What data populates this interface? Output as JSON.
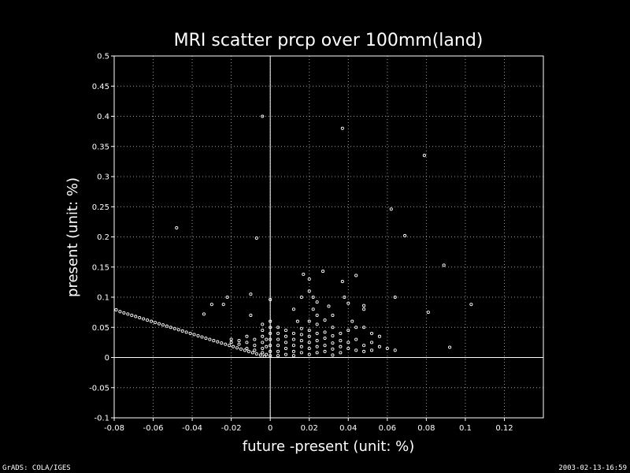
{
  "chart_data": {
    "type": "scatter",
    "title": "MRI scatter prcp over 100mm(land)",
    "xlabel": "future -present (unit: %)",
    "ylabel": "present (unit: %)",
    "xlim": [
      -0.08,
      0.14
    ],
    "ylim": [
      -0.1,
      0.5
    ],
    "xticks": [
      "-0.08",
      "-0.06",
      "-0.04",
      "-0.02",
      "0",
      "0.02",
      "0.04",
      "0.06",
      "0.08",
      "0.1",
      "0.12"
    ],
    "xtick_values": [
      -0.08,
      -0.06,
      -0.04,
      -0.02,
      0,
      0.02,
      0.04,
      0.06,
      0.08,
      0.1,
      0.12
    ],
    "yticks": [
      "-0.1",
      "-0.05",
      "0",
      "0.05",
      "0.1",
      "0.15",
      "0.2",
      "0.25",
      "0.3",
      "0.35",
      "0.4",
      "0.45",
      "0.5"
    ],
    "ytick_values": [
      -0.1,
      -0.05,
      0,
      0.05,
      0.1,
      0.15,
      0.2,
      0.25,
      0.3,
      0.35,
      0.4,
      0.45,
      0.5
    ],
    "grid": true,
    "zero_lines": true,
    "points": [
      [
        -0.079,
        0.079
      ],
      [
        -0.077,
        0.076
      ],
      [
        -0.075,
        0.074
      ],
      [
        -0.073,
        0.072
      ],
      [
        -0.071,
        0.07
      ],
      [
        -0.069,
        0.068
      ],
      [
        -0.067,
        0.066
      ],
      [
        -0.065,
        0.064
      ],
      [
        -0.063,
        0.062
      ],
      [
        -0.061,
        0.06
      ],
      [
        -0.059,
        0.058
      ],
      [
        -0.057,
        0.056
      ],
      [
        -0.055,
        0.054
      ],
      [
        -0.053,
        0.052
      ],
      [
        -0.051,
        0.05
      ],
      [
        -0.049,
        0.048
      ],
      [
        -0.047,
        0.046
      ],
      [
        -0.045,
        0.044
      ],
      [
        -0.043,
        0.042
      ],
      [
        -0.041,
        0.04
      ],
      [
        -0.039,
        0.038
      ],
      [
        -0.037,
        0.036
      ],
      [
        -0.035,
        0.034
      ],
      [
        -0.033,
        0.032
      ],
      [
        -0.031,
        0.03
      ],
      [
        -0.029,
        0.028
      ],
      [
        -0.027,
        0.026
      ],
      [
        -0.025,
        0.024
      ],
      [
        -0.023,
        0.022
      ],
      [
        -0.021,
        0.02
      ],
      [
        -0.019,
        0.018
      ],
      [
        -0.017,
        0.016
      ],
      [
        -0.015,
        0.014
      ],
      [
        -0.013,
        0.012
      ],
      [
        -0.011,
        0.01
      ],
      [
        -0.009,
        0.008
      ],
      [
        -0.007,
        0.006
      ],
      [
        -0.005,
        0.004
      ],
      [
        -0.003,
        0.002
      ],
      [
        -0.02,
        0.03
      ],
      [
        -0.02,
        0.025
      ],
      [
        -0.016,
        0.028
      ],
      [
        -0.016,
        0.022
      ],
      [
        -0.012,
        0.035
      ],
      [
        -0.012,
        0.025
      ],
      [
        -0.012,
        0.015
      ],
      [
        -0.008,
        0.03
      ],
      [
        -0.008,
        0.02
      ],
      [
        -0.008,
        0.012
      ],
      [
        -0.004,
        0.055
      ],
      [
        -0.004,
        0.045
      ],
      [
        -0.004,
        0.035
      ],
      [
        -0.004,
        0.025
      ],
      [
        -0.004,
        0.015
      ],
      [
        -0.004,
        0.008
      ],
      [
        -0.002,
        0.03
      ],
      [
        -0.002,
        0.018
      ],
      [
        -0.002,
        0.005
      ],
      [
        0.0,
        0.06
      ],
      [
        0.0,
        0.05
      ],
      [
        0.0,
        0.04
      ],
      [
        0.0,
        0.03
      ],
      [
        0.0,
        0.02
      ],
      [
        0.0,
        0.01
      ],
      [
        0.0,
        0.003
      ],
      [
        0.004,
        0.05
      ],
      [
        0.004,
        0.04
      ],
      [
        0.004,
        0.03
      ],
      [
        0.004,
        0.02
      ],
      [
        0.004,
        0.01
      ],
      [
        0.004,
        0.003
      ],
      [
        0.008,
        0.045
      ],
      [
        0.008,
        0.035
      ],
      [
        0.008,
        0.025
      ],
      [
        0.008,
        0.015
      ],
      [
        0.008,
        0.005
      ],
      [
        0.012,
        0.04
      ],
      [
        0.012,
        0.03
      ],
      [
        0.012,
        0.02
      ],
      [
        0.012,
        0.01
      ],
      [
        0.012,
        0.003
      ],
      [
        0.016,
        0.048
      ],
      [
        0.016,
        0.038
      ],
      [
        0.016,
        0.028
      ],
      [
        0.016,
        0.018
      ],
      [
        0.016,
        0.008
      ],
      [
        0.02,
        0.06
      ],
      [
        0.02,
        0.045
      ],
      [
        0.02,
        0.035
      ],
      [
        0.02,
        0.025
      ],
      [
        0.02,
        0.015
      ],
      [
        0.02,
        0.005
      ],
      [
        0.024,
        0.07
      ],
      [
        0.024,
        0.055
      ],
      [
        0.024,
        0.04
      ],
      [
        0.024,
        0.028
      ],
      [
        0.024,
        0.018
      ],
      [
        0.024,
        0.008
      ],
      [
        0.028,
        0.062
      ],
      [
        0.028,
        0.042
      ],
      [
        0.028,
        0.032
      ],
      [
        0.028,
        0.02
      ],
      [
        0.028,
        0.01
      ],
      [
        0.032,
        0.05
      ],
      [
        0.032,
        0.036
      ],
      [
        0.032,
        0.024
      ],
      [
        0.032,
        0.014
      ],
      [
        0.032,
        0.004
      ],
      [
        0.036,
        0.04
      ],
      [
        0.036,
        0.028
      ],
      [
        0.036,
        0.018
      ],
      [
        0.036,
        0.008
      ],
      [
        0.04,
        0.045
      ],
      [
        0.04,
        0.025
      ],
      [
        0.04,
        0.015
      ],
      [
        0.044,
        0.05
      ],
      [
        0.044,
        0.03
      ],
      [
        0.044,
        0.012
      ],
      [
        0.048,
        0.05
      ],
      [
        0.048,
        0.02
      ],
      [
        0.048,
        0.01
      ],
      [
        0.052,
        0.04
      ],
      [
        0.052,
        0.025
      ],
      [
        0.052,
        0.012
      ],
      [
        0.056,
        0.035
      ],
      [
        0.056,
        0.018
      ],
      [
        0.06,
        0.015
      ],
      [
        0.064,
        0.012
      ],
      [
        -0.048,
        0.215
      ],
      [
        -0.034,
        0.072
      ],
      [
        -0.03,
        0.088
      ],
      [
        -0.024,
        0.088
      ],
      [
        -0.022,
        0.1
      ],
      [
        -0.01,
        0.105
      ],
      [
        -0.01,
        0.07
      ],
      [
        -0.007,
        0.198
      ],
      [
        -0.004,
        0.4
      ],
      [
        0.0,
        0.096
      ],
      [
        0.012,
        0.08
      ],
      [
        0.014,
        0.06
      ],
      [
        0.016,
        0.1
      ],
      [
        0.017,
        0.138
      ],
      [
        0.02,
        0.13
      ],
      [
        0.02,
        0.11
      ],
      [
        0.022,
        0.1
      ],
      [
        0.022,
        0.08
      ],
      [
        0.024,
        0.092
      ],
      [
        0.027,
        0.143
      ],
      [
        0.03,
        0.085
      ],
      [
        0.032,
        0.07
      ],
      [
        0.037,
        0.38
      ],
      [
        0.037,
        0.126
      ],
      [
        0.038,
        0.1
      ],
      [
        0.04,
        0.09
      ],
      [
        0.042,
        0.06
      ],
      [
        0.044,
        0.136
      ],
      [
        0.048,
        0.086
      ],
      [
        0.048,
        0.08
      ],
      [
        0.062,
        0.246
      ],
      [
        0.064,
        0.1
      ],
      [
        0.069,
        0.202
      ],
      [
        0.079,
        0.335
      ],
      [
        0.081,
        0.075
      ],
      [
        0.089,
        0.153
      ],
      [
        0.092,
        0.017
      ],
      [
        0.103,
        0.088
      ]
    ]
  },
  "footer": {
    "left": "GrADS: COLA/IGES",
    "right": "2003-02-13-16:59"
  }
}
